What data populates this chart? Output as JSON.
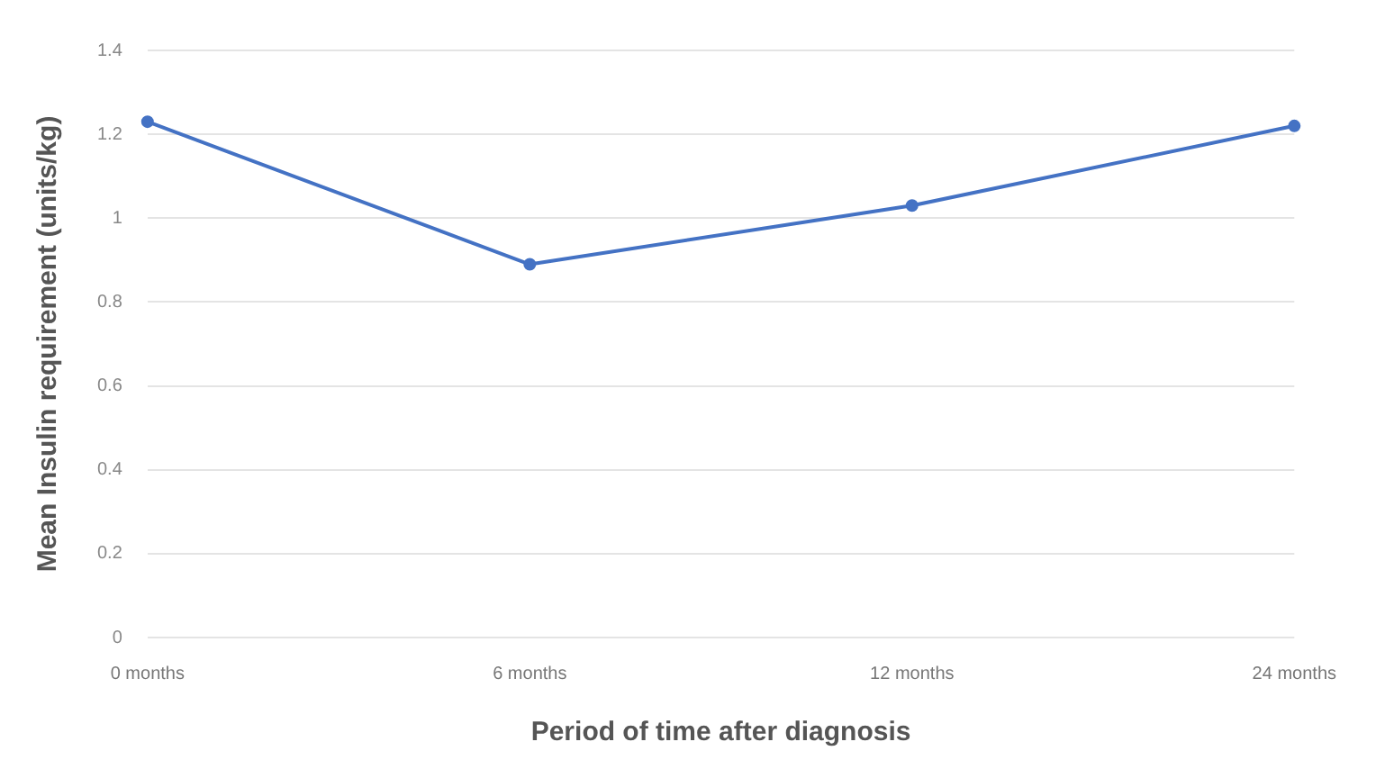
{
  "chart_data": {
    "type": "line",
    "xlabel": "Period of time after diagnosis",
    "ylabel": "Mean Insulin requirement (units/kg)",
    "categories": [
      "0 months",
      "6 months",
      "12 months",
      "24 months"
    ],
    "series": [
      {
        "color": "#4472c4",
        "values": [
          1.23,
          0.89,
          1.03,
          1.22
        ]
      }
    ],
    "ylim": [
      0,
      1.4
    ],
    "yticks": [
      0,
      0.2,
      0.4,
      0.6,
      0.8,
      1,
      1.2,
      1.4
    ],
    "grid": "y",
    "legend": false,
    "marker": "circle"
  }
}
